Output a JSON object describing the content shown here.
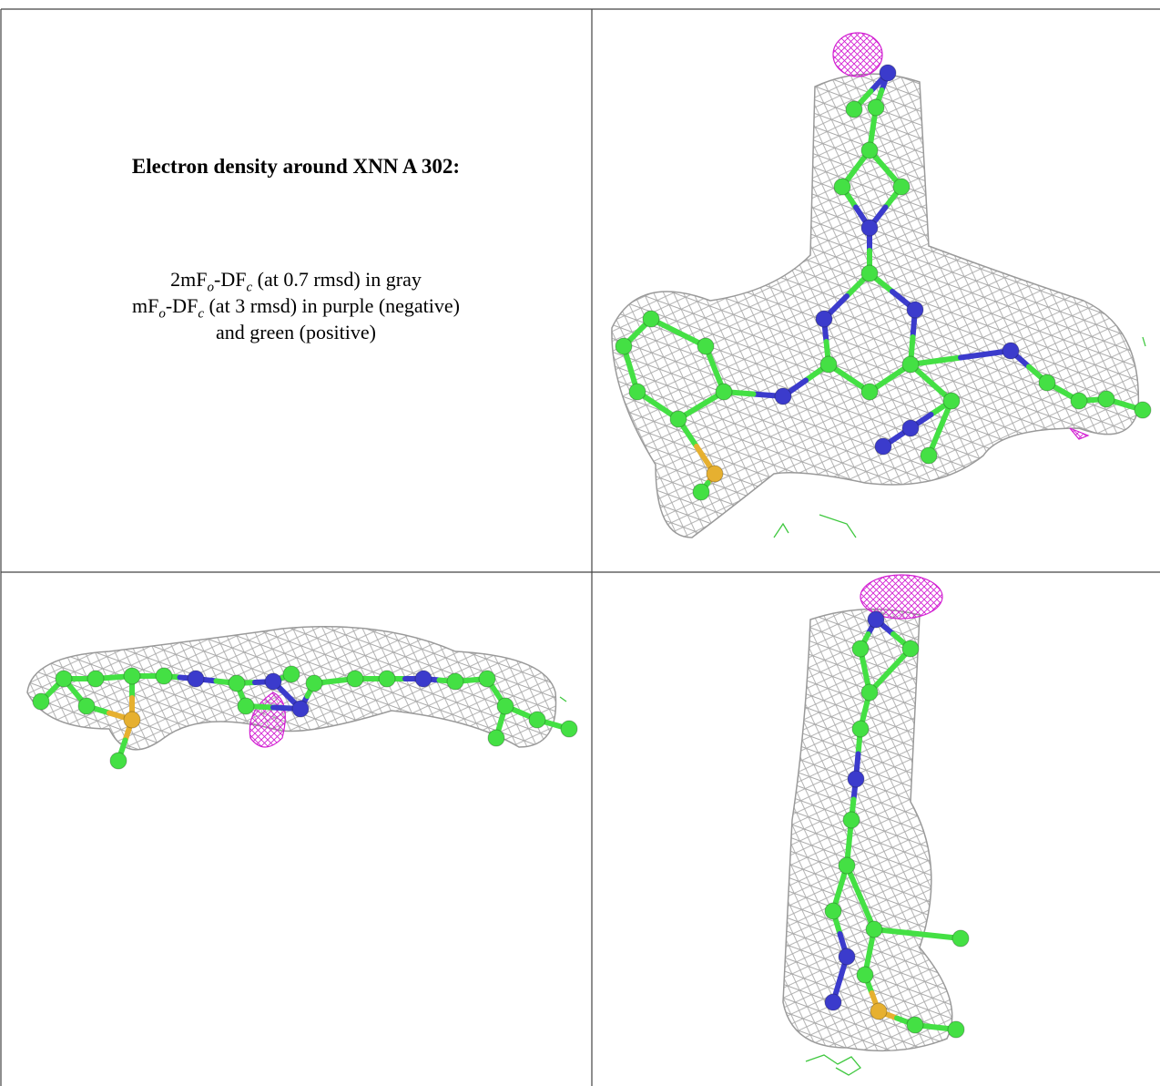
{
  "caption": {
    "title": "Electron density around XNN A 302:",
    "legend": {
      "line1": [
        "2mF",
        "o",
        "-DF",
        "c",
        " (at 0.7 rmsd) in gray"
      ],
      "line2": [
        "mF",
        "o",
        "-DF",
        "c",
        " (at 3 rmsd) in purple (negative)"
      ],
      "line3": "and green (positive)"
    }
  }
}
